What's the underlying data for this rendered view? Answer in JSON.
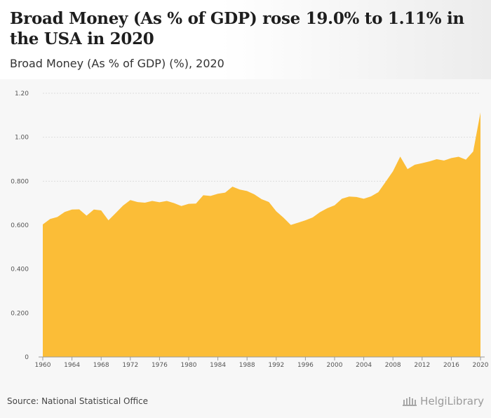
{
  "header": {
    "title": "Broad Money (As % of GDP) rose 19.0% to 1.11% in the USA in 2020",
    "subtitle": "Broad Money (As % of GDP) (%), 2020"
  },
  "footer": {
    "source": "Source: National Statistical Office",
    "brand": "HelgiLibrary",
    "brand_icon": "library-building-icon"
  },
  "colors": {
    "area_fill": "#fbbd37",
    "grid": "#dddddd",
    "axis": "#999999"
  },
  "chart_data": {
    "type": "area",
    "title": "Broad Money (As % of GDP) rose 19.0% to 1.11% in the USA in 2020",
    "subtitle": "Broad Money (As % of GDP) (%), 2020",
    "xlabel": "",
    "ylabel": "",
    "ylim": [
      0,
      1.2
    ],
    "xlim": [
      1960,
      2020
    ],
    "grid": true,
    "legend": "none",
    "y_ticks": [
      0,
      0.2,
      0.4,
      0.6,
      0.8,
      1.0,
      1.2
    ],
    "y_tick_labels": [
      "0",
      "0.200",
      "0.400",
      "0.600",
      "0.800",
      "1.00",
      "1.20"
    ],
    "x_tick_labels": [
      "1960",
      "1964",
      "1968",
      "1972",
      "1976",
      "1980",
      "1984",
      "1988",
      "1992",
      "1996",
      "2000",
      "2004",
      "2008",
      "2012",
      "2016",
      "2020"
    ],
    "x": [
      1960,
      1961,
      1962,
      1963,
      1964,
      1965,
      1966,
      1967,
      1968,
      1969,
      1970,
      1971,
      1972,
      1973,
      1974,
      1975,
      1976,
      1977,
      1978,
      1979,
      1980,
      1981,
      1982,
      1983,
      1984,
      1985,
      1986,
      1987,
      1988,
      1989,
      1990,
      1991,
      1992,
      1993,
      1994,
      1995,
      1996,
      1997,
      1998,
      1999,
      2000,
      2001,
      2002,
      2003,
      2004,
      2005,
      2006,
      2007,
      2008,
      2009,
      2010,
      2011,
      2012,
      2013,
      2014,
      2015,
      2016,
      2017,
      2018,
      2019,
      2020
    ],
    "values": [
      0.603,
      0.628,
      0.637,
      0.66,
      0.671,
      0.672,
      0.643,
      0.671,
      0.667,
      0.622,
      0.655,
      0.689,
      0.714,
      0.705,
      0.702,
      0.71,
      0.704,
      0.71,
      0.7,
      0.687,
      0.697,
      0.698,
      0.736,
      0.733,
      0.743,
      0.748,
      0.775,
      0.762,
      0.755,
      0.74,
      0.718,
      0.705,
      0.663,
      0.634,
      0.601,
      0.611,
      0.622,
      0.635,
      0.659,
      0.677,
      0.69,
      0.72,
      0.73,
      0.728,
      0.72,
      0.731,
      0.75,
      0.797,
      0.845,
      0.912,
      0.855,
      0.875,
      0.882,
      0.89,
      0.9,
      0.894,
      0.905,
      0.911,
      0.898,
      0.935,
      1.113
    ]
  }
}
